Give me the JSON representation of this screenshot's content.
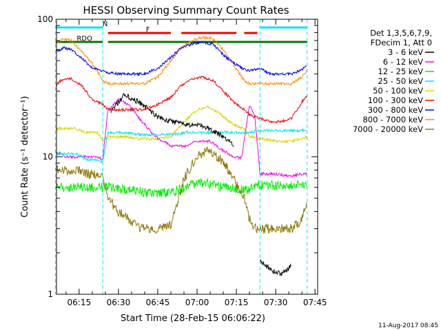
{
  "chart_data": {
    "type": "line",
    "title": "HESSI Observing Summary Count Rates",
    "xlabel": "Start Time (28-Feb-15 06:06:22)",
    "ylabel": "Count Rate (s⁻¹ detector⁻¹)",
    "yscale": "log",
    "ylim": [
      1,
      100
    ],
    "xlim": [
      "06:06:22",
      "07:46:00"
    ],
    "x_ticks": [
      "06:15",
      "06:30",
      "06:45",
      "07:00",
      "07:15",
      "07:30",
      "07:45"
    ],
    "y_ticks": [
      "1",
      "10",
      "100"
    ],
    "footer": "11-Aug-2017 08:45",
    "legend": {
      "position": "right",
      "header": [
        "Det 1,3,5,6,7,9,",
        "FDecim 1, Att 0"
      ]
    },
    "flags": [
      {
        "label": "N",
        "color": "#00e5ee",
        "segments": [
          [
            "06:06",
            "06:24"
          ],
          [
            "07:24",
            "07:42"
          ]
        ]
      },
      {
        "label": "F",
        "color": "#ee0000",
        "segments": [
          [
            "06:26",
            "06:50"
          ],
          [
            "06:54",
            "07:15"
          ],
          [
            "07:18",
            "07:23"
          ]
        ]
      },
      {
        "label": "RDO",
        "color": "#007700",
        "segments": [
          [
            "06:06",
            "06:24"
          ],
          [
            "06:26",
            "07:42"
          ]
        ]
      }
    ],
    "series": [
      {
        "name": "3 - 6 keV",
        "color": "#000000",
        "x": [
          "06:10",
          "06:18",
          "06:24",
          "06:27",
          "06:32",
          "06:38",
          "06:44",
          "06:50",
          "06:56",
          "07:00",
          "07:05",
          "07:10",
          "07:14",
          "07:18",
          "07:21",
          "07:24",
          "07:28",
          "07:32",
          "07:36",
          "07:40",
          "07:42"
        ],
        "y": [
          null,
          null,
          null,
          21,
          28,
          25,
          20,
          18,
          17,
          17,
          16,
          14,
          12,
          null,
          null,
          1.8,
          1.5,
          1.4,
          1.6,
          null,
          null
        ]
      },
      {
        "name": "6 - 12 keV",
        "color": "#ee00ee",
        "x": [
          "06:06",
          "06:10",
          "06:14",
          "06:18",
          "06:22",
          "06:24",
          "06:26",
          "06:30",
          "06:34",
          "06:38",
          "06:44",
          "06:50",
          "06:56",
          "07:00",
          "07:05",
          "07:10",
          "07:14",
          "07:17",
          "07:20",
          "07:22",
          "07:24",
          "07:30",
          "07:36",
          "07:40",
          "07:42"
        ],
        "y": [
          11,
          10,
          10,
          10,
          10,
          9.5,
          22,
          26,
          24,
          19,
          14,
          12,
          12,
          13,
          13,
          11,
          10,
          9.8,
          24,
          20,
          7.5,
          7.5,
          7.2,
          7.5,
          7.5
        ]
      },
      {
        "name": "12 - 25 keV",
        "color": "#00ee00",
        "x": [
          "06:06",
          "06:12",
          "06:18",
          "06:24",
          "06:26",
          "06:32",
          "06:38",
          "06:44",
          "06:50",
          "06:56",
          "07:00",
          "07:04",
          "07:10",
          "07:16",
          "07:20",
          "07:24",
          "07:30",
          "07:36",
          "07:42"
        ],
        "y": [
          6,
          6,
          6,
          6,
          6,
          5.8,
          5.6,
          5.4,
          5.5,
          6,
          6.5,
          6.4,
          6,
          5.8,
          5.8,
          6.2,
          6.2,
          6.2,
          6.2
        ]
      },
      {
        "name": "25 - 50 keV",
        "color": "#00e5ee",
        "x": [
          "06:06",
          "06:10",
          "06:14",
          "06:18",
          "06:22",
          "06:24",
          "06:26",
          "06:32",
          "06:38",
          "06:44",
          "06:50",
          "06:56",
          "07:00",
          "07:05",
          "07:10",
          "07:16",
          "07:20",
          "07:24",
          "07:30",
          "07:36",
          "07:42"
        ],
        "y": [
          10.5,
          10.5,
          10.5,
          9.5,
          9.5,
          9,
          15,
          15,
          14.5,
          14.5,
          14.5,
          15,
          15,
          15,
          15,
          15,
          15,
          15.5,
          15.5,
          15.5,
          15.5
        ]
      },
      {
        "name": "50 - 100 keV",
        "color": "#d4d400",
        "x": [
          "06:06",
          "06:10",
          "06:14",
          "06:18",
          "06:22",
          "06:24",
          "06:26",
          "06:32",
          "06:38",
          "06:44",
          "06:50",
          "06:55",
          "07:00",
          "07:04",
          "07:08",
          "07:14",
          "07:18",
          "07:20",
          "07:24",
          "07:30",
          "07:36",
          "07:40",
          "07:42"
        ],
        "y": [
          16,
          16,
          16,
          15,
          15,
          13,
          14,
          14,
          13.5,
          13.5,
          14,
          18,
          22,
          23,
          21,
          17,
          16,
          14,
          13.5,
          13,
          13,
          13.5,
          14
        ]
      },
      {
        "name": "100 - 300 keV",
        "color": "#ee0000",
        "x": [
          "06:06",
          "06:09",
          "06:12",
          "06:16",
          "06:20",
          "06:24",
          "06:26",
          "06:30",
          "06:34",
          "06:40",
          "06:45",
          "06:50",
          "06:54",
          "06:58",
          "07:02",
          "07:06",
          "07:10",
          "07:14",
          "07:18",
          "07:20",
          "07:24",
          "07:28",
          "07:32",
          "07:36",
          "07:40",
          "07:42"
        ],
        "y": [
          33,
          37,
          37,
          33,
          26,
          24,
          22,
          22,
          22,
          22,
          24,
          27,
          33,
          37,
          38,
          36,
          30,
          25,
          22,
          20,
          19,
          18,
          18,
          19,
          25,
          28
        ]
      },
      {
        "name": "300 - 800 keV",
        "color": "#0000ee",
        "x": [
          "06:06",
          "06:09",
          "06:12",
          "06:16",
          "06:20",
          "06:24",
          "06:26",
          "06:30",
          "06:34",
          "06:40",
          "06:45",
          "06:50",
          "06:54",
          "06:58",
          "07:02",
          "07:06",
          "07:10",
          "07:14",
          "07:18",
          "07:20",
          "07:24",
          "07:28",
          "07:32",
          "07:36",
          "07:40",
          "07:42"
        ],
        "y": [
          58,
          62,
          60,
          52,
          44,
          42,
          41,
          40,
          40,
          40,
          44,
          53,
          62,
          66,
          68,
          66,
          55,
          48,
          43,
          42,
          44,
          40,
          40,
          40,
          43,
          46
        ]
      },
      {
        "name": "800 - 7000 keV",
        "color": "#ff8800",
        "x": [
          "06:06",
          "06:09",
          "06:12",
          "06:16",
          "06:20",
          "06:24",
          "06:26",
          "06:30",
          "06:34",
          "06:40",
          "06:45",
          "06:50",
          "06:54",
          "06:58",
          "07:02",
          "07:06",
          "07:10",
          "07:14",
          "07:18",
          "07:20",
          "07:24",
          "07:28",
          "07:32",
          "07:36",
          "07:40",
          "07:42"
        ],
        "y": [
          68,
          72,
          70,
          58,
          48,
          36,
          34,
          34,
          34,
          34,
          38,
          50,
          62,
          70,
          74,
          72,
          60,
          46,
          36,
          34,
          34,
          34,
          34,
          34,
          38,
          42
        ]
      },
      {
        "name": "7000 - 20000 keV",
        "color": "#8b7500",
        "x": [
          "06:06",
          "06:10",
          "06:14",
          "06:18",
          "06:22",
          "06:24",
          "06:26",
          "06:30",
          "06:34",
          "06:38",
          "06:44",
          "06:50",
          "06:55",
          "07:00",
          "07:04",
          "07:08",
          "07:12",
          "07:16",
          "07:18",
          "07:20",
          "07:22",
          "07:24",
          "07:28",
          "07:32",
          "07:36",
          "07:40",
          "07:42"
        ],
        "y": [
          8,
          8,
          8,
          7.5,
          7.5,
          7,
          5,
          4,
          3.5,
          3,
          3,
          3.2,
          7,
          10,
          11,
          10,
          8,
          6,
          5,
          3.5,
          3,
          3,
          3,
          3,
          3,
          3.5,
          5
        ]
      }
    ]
  }
}
